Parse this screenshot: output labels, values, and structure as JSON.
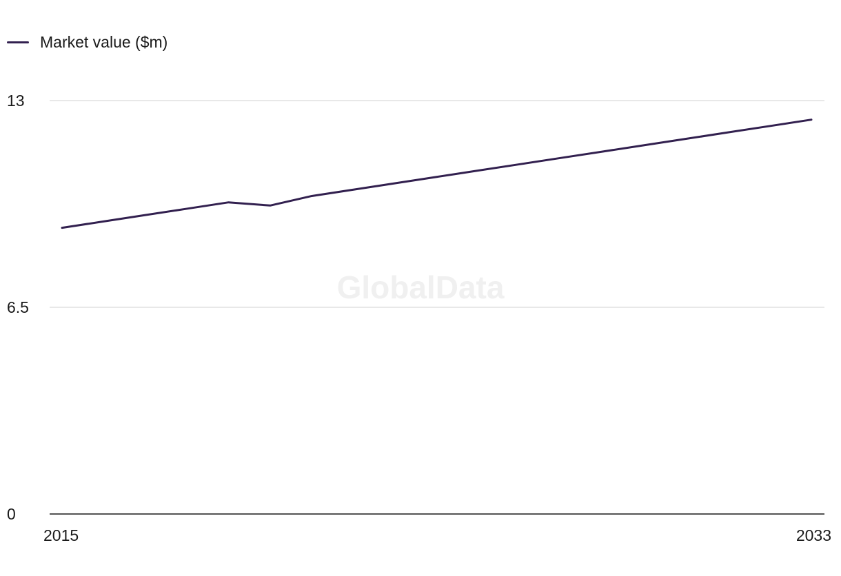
{
  "legend": {
    "label": "Market value ($m)"
  },
  "watermark": "GlobalData",
  "colors": {
    "series": "#32204f",
    "grid": "#d9d9d9",
    "axis": "#1a1a1a"
  },
  "chart_data": {
    "type": "line",
    "title": "",
    "xlabel": "",
    "ylabel": "",
    "x": [
      2015,
      2016,
      2017,
      2018,
      2019,
      2020,
      2021,
      2022,
      2023,
      2024,
      2025,
      2026,
      2027,
      2028,
      2029,
      2030,
      2031,
      2032,
      2033
    ],
    "x_tick_labels": [
      "2015",
      "2033"
    ],
    "ylim": [
      0,
      13
    ],
    "y_ticks": [
      0,
      6.5,
      13
    ],
    "y_tick_labels": [
      "0",
      "6.5",
      "13"
    ],
    "grid": true,
    "legend_position": "top-left",
    "series": [
      {
        "name": "Market value ($m)",
        "values": [
          9.0,
          9.2,
          9.4,
          9.6,
          9.8,
          9.7,
          10.0,
          10.2,
          10.4,
          10.6,
          10.8,
          11.0,
          11.2,
          11.4,
          11.6,
          11.8,
          12.0,
          12.2,
          12.4
        ]
      }
    ]
  }
}
